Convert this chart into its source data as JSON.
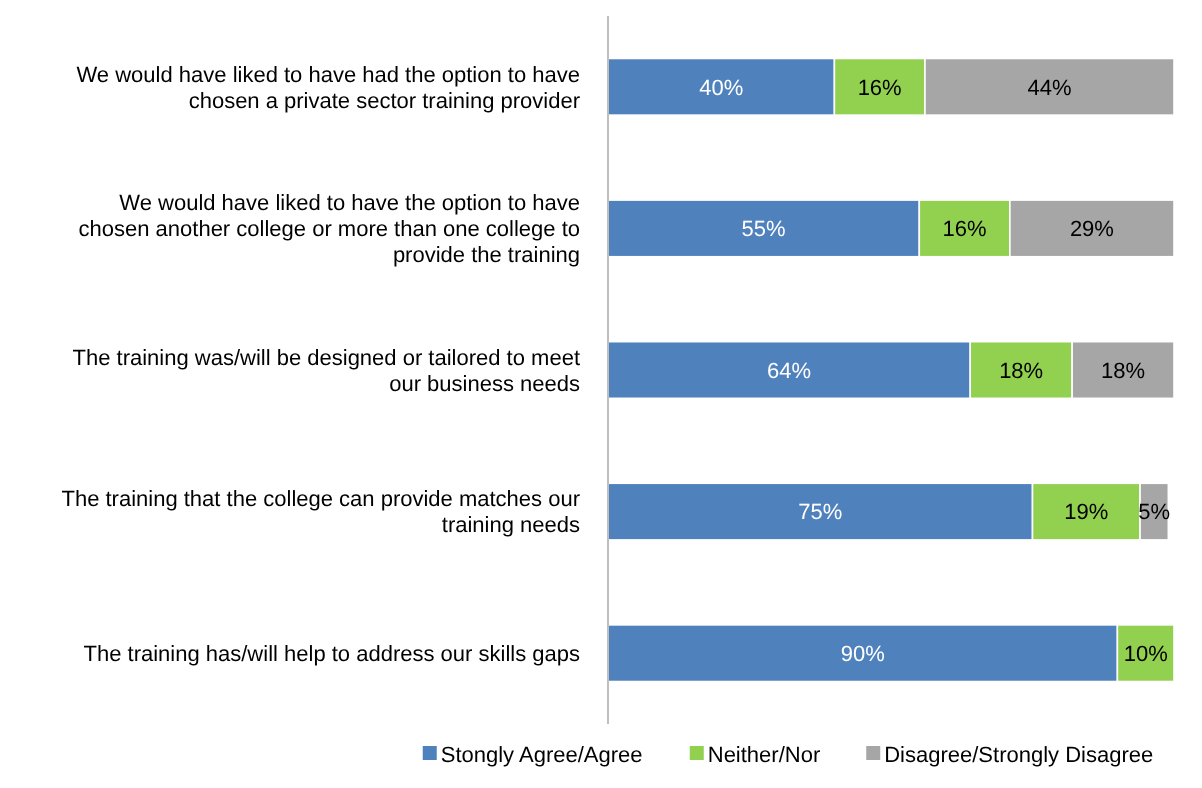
{
  "chart_data": {
    "type": "bar",
    "orientation": "horizontal",
    "stacked": true,
    "legend": "bottom",
    "categories": [
      "We would have liked to have had the option to have chosen a private sector training provider",
      "We would have liked to have the option to have chosen another college or more than one college to provide the training",
      "The training was/will be designed or tailored to meet our business needs",
      "The training that the college can provide matches our training needs",
      "The training has/will help to address our skills gaps"
    ],
    "series": [
      {
        "name": "Stongly Agree/Agree",
        "color": "#4f81bd",
        "values": [
          40,
          55,
          64,
          75,
          90
        ],
        "value_labels": [
          "40%",
          "55%",
          "64%",
          "75%",
          "90%"
        ]
      },
      {
        "name": "Neither/Nor",
        "color": "#92d050",
        "values": [
          16,
          16,
          18,
          19,
          10
        ],
        "value_labels": [
          "16%",
          "16%",
          "18%",
          "19%",
          "10%"
        ]
      },
      {
        "name": "Disagree/Strongly Disagree",
        "color": "#a6a6a6",
        "values": [
          44,
          29,
          18,
          5,
          0
        ],
        "value_labels": [
          "44%",
          "29%",
          "18%",
          "5%",
          null
        ]
      }
    ]
  }
}
